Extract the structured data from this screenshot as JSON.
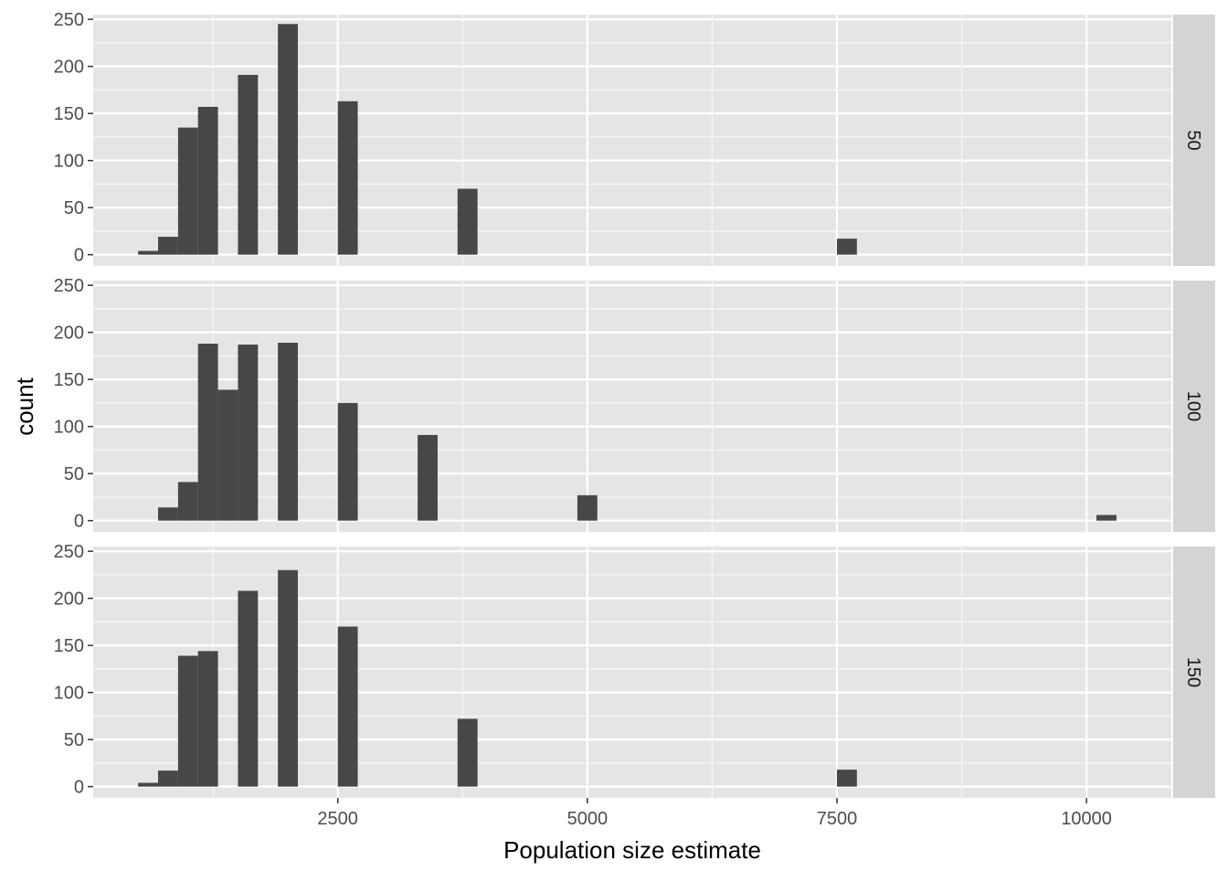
{
  "chart_data": {
    "type": "bar",
    "subtype": "faceted-histogram",
    "xlabel": "Population size estimate",
    "ylabel": "count",
    "x_ticks": [
      2500,
      5000,
      7500,
      10000
    ],
    "x_tick_labels": [
      "2500",
      "5000",
      "7500",
      "10000"
    ],
    "xlim": [
      50,
      10850
    ],
    "y_ticks": [
      0,
      50,
      100,
      150,
      200,
      250
    ],
    "y_tick_labels": [
      "0",
      "50",
      "100",
      "150",
      "200",
      "250"
    ],
    "ylim": [
      -12,
      255
    ],
    "bin_width": 200,
    "grid": true,
    "facet_orientation": "rows",
    "colors": {
      "panel_background": "#e5e5e5",
      "grid_major": "#ffffff",
      "bar_fill": "#474747",
      "strip_background": "#d4d4d4"
    },
    "panels": [
      {
        "strip_label": "50",
        "bins": [
          {
            "x": 600,
            "count": 4
          },
          {
            "x": 800,
            "count": 19
          },
          {
            "x": 1000,
            "count": 135
          },
          {
            "x": 1200,
            "count": 157
          },
          {
            "x": 1600,
            "count": 191
          },
          {
            "x": 2000,
            "count": 245
          },
          {
            "x": 2600,
            "count": 163
          },
          {
            "x": 3800,
            "count": 70
          },
          {
            "x": 7600,
            "count": 17
          }
        ]
      },
      {
        "strip_label": "100",
        "bins": [
          {
            "x": 800,
            "count": 14
          },
          {
            "x": 1000,
            "count": 41
          },
          {
            "x": 1200,
            "count": 188
          },
          {
            "x": 1400,
            "count": 139
          },
          {
            "x": 1600,
            "count": 187
          },
          {
            "x": 2000,
            "count": 189
          },
          {
            "x": 2600,
            "count": 125
          },
          {
            "x": 3400,
            "count": 91
          },
          {
            "x": 5000,
            "count": 27
          },
          {
            "x": 10200,
            "count": 6
          }
        ]
      },
      {
        "strip_label": "150",
        "bins": [
          {
            "x": 600,
            "count": 4
          },
          {
            "x": 800,
            "count": 17
          },
          {
            "x": 1000,
            "count": 139
          },
          {
            "x": 1200,
            "count": 144
          },
          {
            "x": 1600,
            "count": 208
          },
          {
            "x": 2000,
            "count": 230
          },
          {
            "x": 2600,
            "count": 170
          },
          {
            "x": 3800,
            "count": 72
          },
          {
            "x": 7600,
            "count": 18
          }
        ]
      }
    ]
  }
}
